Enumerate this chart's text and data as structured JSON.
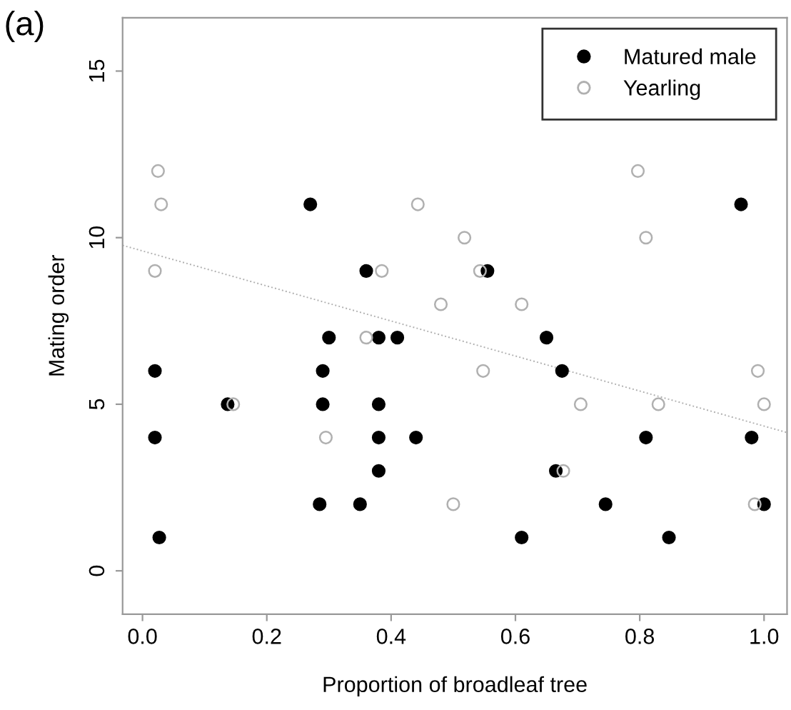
{
  "chart_data": {
    "type": "scatter",
    "xlabel": "Proportion of broadleaf tree",
    "ylabel": "Mating order",
    "annotations": [
      "(a)"
    ],
    "xlim": [
      -0.032,
      1.037
    ],
    "ylim": [
      -1.3,
      16.6
    ],
    "xticks": [
      {
        "value": 0,
        "label": "0.0"
      },
      0.2,
      0.4,
      0.6,
      0.8,
      {
        "value": 1,
        "label": "1.0"
      }
    ],
    "yticks": [
      0,
      5,
      10,
      15
    ],
    "grid": false,
    "legend": "top right",
    "series": [
      {
        "name": "Matured male",
        "color": "#000000",
        "marker": "circle",
        "x": [
          0.02,
          0.02,
          0.027,
          0.137,
          0.27,
          0.285,
          0.29,
          0.29,
          0.3,
          0.36,
          0.38,
          0.41,
          0.38,
          0.38,
          0.38,
          0.44,
          0.35,
          0.555,
          0.65,
          0.675,
          0.81,
          0.98,
          0.665,
          0.745,
          1.0,
          0.61,
          0.847,
          0.963
        ],
        "values": [
          6,
          4,
          1,
          5,
          11,
          2,
          6,
          5,
          7,
          9,
          7,
          7,
          5,
          4,
          3,
          4,
          2,
          9,
          7,
          6,
          4,
          4,
          3,
          2,
          2,
          1,
          1,
          11
        ]
      },
      {
        "name": "Yearling",
        "color": "#b0b0b0",
        "marker": "circle",
        "x": [
          0.025,
          0.03,
          0.02,
          0.146,
          0.295,
          0.36,
          0.385,
          0.443,
          0.48,
          0.5,
          0.797,
          0.518,
          0.81,
          0.543,
          0.61,
          0.548,
          0.99,
          0.705,
          0.83,
          1.0,
          0.677,
          0.985
        ],
        "values": [
          12,
          11,
          9,
          5,
          4,
          7,
          9,
          11,
          8,
          2,
          12,
          10,
          10,
          9,
          8,
          6,
          6,
          5,
          5,
          5,
          3,
          2
        ]
      },
      {
        "type": "line",
        "color": "#b0b0b0",
        "line_style": "dotted",
        "marker": "none",
        "x": [
          -0.032,
          1.037
        ],
        "values": [
          9.77,
          4.15
        ]
      }
    ]
  }
}
